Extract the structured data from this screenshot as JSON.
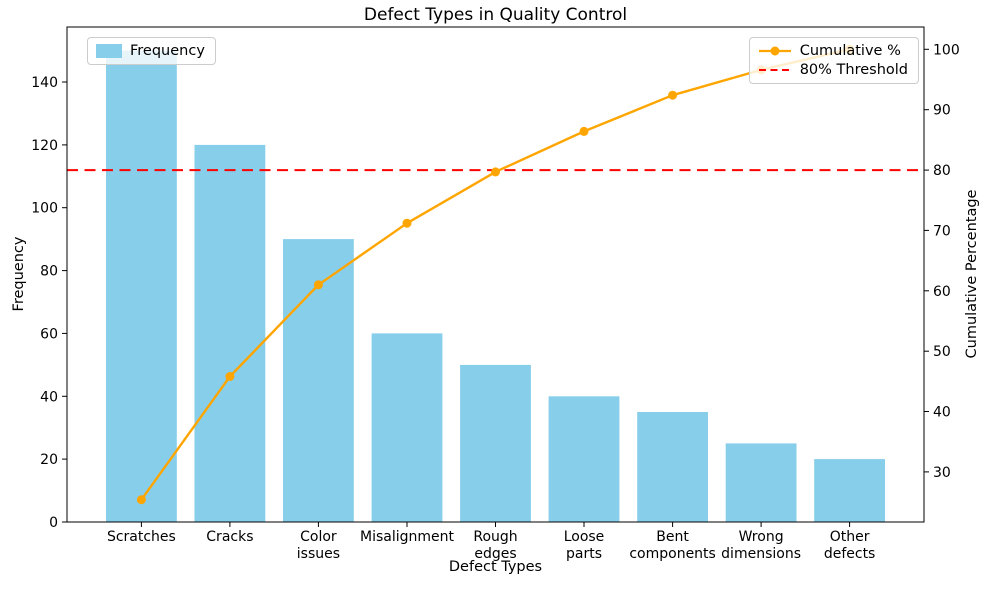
{
  "chart_data": {
    "type": "pareto (bar + line)",
    "title": "Defect Types in Quality Control",
    "xlabel": "Defect Types",
    "ylabel_left": "Frequency",
    "ylabel_right": "Cumulative Percentage",
    "categories": [
      "Scratches",
      "Cracks",
      "Color issues",
      "Misalignment",
      "Rough edges",
      "Loose parts",
      "Bent components",
      "Wrong dimensions",
      "Other defects"
    ],
    "frequencies": [
      150,
      120,
      90,
      60,
      50,
      40,
      35,
      25,
      20
    ],
    "cumulative_pct": [
      25.4,
      45.8,
      61.0,
      71.2,
      79.7,
      86.4,
      92.4,
      96.6,
      100.0
    ],
    "threshold_pct": 80,
    "left_axis": {
      "ticks": [
        0,
        20,
        40,
        60,
        80,
        100,
        120,
        140
      ],
      "range": [
        0,
        157.5
      ]
    },
    "right_axis": {
      "ticks": [
        30,
        40,
        50,
        60,
        70,
        80,
        90,
        100
      ],
      "range": [
        21.7,
        103.7
      ]
    },
    "legend": {
      "frequency": "Frequency",
      "cumulative": "Cumulative %",
      "threshold": "80% Threshold"
    },
    "colors": {
      "bar": "#87CEEB",
      "line": "#FFA500",
      "threshold": "#FF0000",
      "axis": "#000000",
      "background": "#FFFFFF"
    },
    "grid": false,
    "legend_positions": {
      "frequency": "upper left",
      "cumulative": "upper right"
    }
  }
}
